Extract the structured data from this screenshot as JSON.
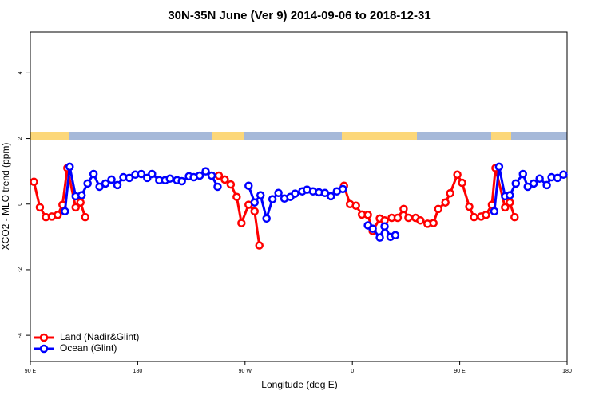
{
  "chart_data": {
    "type": "line",
    "title": "30N-35N June (Ver 9)   2014-09-06 to 2018-12-31",
    "x_label": "Longitude (deg E)",
    "y_label": "XCO2 - MLO trend (ppm)",
    "xlim": [
      90,
      540
    ],
    "xticks": [
      {
        "value": 90,
        "label": "90 E"
      },
      {
        "value": 180,
        "label": "180"
      },
      {
        "value": 270,
        "label": "90 W"
      },
      {
        "value": 360,
        "label": "0"
      },
      {
        "value": 450,
        "label": "90 E"
      },
      {
        "value": 540,
        "label": "180"
      }
    ],
    "ylim": [
      -4.8,
      5.25
    ],
    "yticks": [
      -4,
      -2,
      0,
      2,
      4
    ],
    "legend": "bottomleft",
    "series": [
      {
        "name": "Land (Nadir&Glint)",
        "color": "#ff0000",
        "x": [
          93,
          98,
          103,
          108,
          113,
          117,
          121,
          128,
          132,
          136,
          190,
          248,
          253,
          258,
          263,
          267,
          273,
          278,
          282,
          320,
          353,
          358,
          363,
          368,
          373,
          377,
          383,
          387,
          393,
          398,
          403,
          407,
          413,
          417,
          423,
          428,
          432,
          438,
          442,
          448,
          452,
          458,
          462,
          468,
          472,
          477,
          480,
          488,
          492,
          496
        ],
        "values": [
          0.68,
          -0.1,
          -0.4,
          -0.38,
          -0.33,
          -0.02,
          1.1,
          -0.1,
          0.05,
          -0.4,
          null,
          0.87,
          0.75,
          0.6,
          0.22,
          -0.58,
          -0.02,
          -0.22,
          -1.26,
          null,
          0.56,
          0,
          -0.05,
          -0.32,
          -0.33,
          -0.82,
          -0.44,
          -0.5,
          -0.42,
          -0.42,
          -0.15,
          -0.42,
          -0.42,
          -0.5,
          -0.6,
          -0.58,
          -0.15,
          0.05,
          0.33,
          0.9,
          0.65,
          -0.08,
          -0.4,
          -0.38,
          -0.33,
          -0.02,
          1.1,
          -0.1,
          0.05,
          -0.4
        ]
      },
      {
        "name": "Ocean (Glint)",
        "color": "#0000ff",
        "x": [
          119,
          123,
          128,
          133,
          138,
          143,
          148,
          153,
          158,
          163,
          168,
          173,
          178,
          183,
          188,
          192,
          198,
          203,
          207,
          213,
          217,
          223,
          227,
          232,
          237,
          242,
          247,
          260,
          273,
          278,
          283,
          288,
          293,
          298,
          303,
          308,
          312,
          318,
          322,
          327,
          332,
          337,
          342,
          347,
          352,
          365,
          373,
          377,
          383,
          387,
          392,
          396,
          450,
          479,
          483,
          488,
          492,
          497,
          503,
          507,
          512,
          517,
          523,
          527,
          532,
          537
        ],
        "values": [
          -0.22,
          1.14,
          0.24,
          0.27,
          0.63,
          0.92,
          0.53,
          0.63,
          0.75,
          0.58,
          0.82,
          0.8,
          0.9,
          0.92,
          0.8,
          0.92,
          0.73,
          0.73,
          0.78,
          0.73,
          0.7,
          0.85,
          0.82,
          0.87,
          1.0,
          0.87,
          0.53,
          null,
          0.56,
          0.05,
          0.27,
          -0.44,
          0.15,
          0.34,
          0.17,
          0.22,
          0.32,
          0.39,
          0.44,
          0.39,
          0.36,
          0.34,
          0.24,
          0.39,
          0.46,
          null,
          -0.65,
          -0.75,
          -1.02,
          -0.68,
          -1.0,
          -0.95,
          null,
          -0.22,
          1.14,
          0.24,
          0.27,
          0.63,
          0.92,
          0.53,
          0.63,
          0.78,
          0.58,
          0.82,
          0.8,
          0.9
        ]
      }
    ]
  }
}
